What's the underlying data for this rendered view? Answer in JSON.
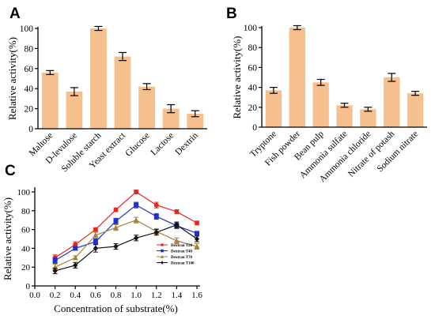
{
  "chart_data": [
    {
      "panel": "A",
      "type": "bar",
      "ylabel": "Relative activity(%)",
      "categories": [
        "Maltose",
        "D-levulose",
        "Soluble starch",
        "Yeast extract",
        "Glucose",
        "Lactose",
        "Dextrin"
      ],
      "values": [
        56,
        37,
        100,
        72,
        42,
        20,
        15
      ],
      "errors": [
        2,
        4,
        2,
        4,
        3,
        4,
        3
      ],
      "ylim": [
        0,
        100
      ],
      "yticks": [
        0,
        20,
        40,
        60,
        80,
        100
      ],
      "bar_color": "#f5c08e"
    },
    {
      "panel": "B",
      "type": "bar",
      "ylabel": "Relative activity(%)",
      "categories": [
        "Tryptone",
        "Fish powder",
        "Bean pulp",
        "Ammonia sulfate",
        "Ammonia chloride",
        "Nitrate of potash",
        "Sodium nitrate"
      ],
      "values": [
        37,
        100,
        45,
        22,
        18,
        50,
        34
      ],
      "errors": [
        3,
        2,
        3,
        2,
        2,
        4,
        2
      ],
      "ylim": [
        0,
        100
      ],
      "yticks": [
        0,
        20,
        40,
        60,
        80,
        100
      ],
      "bar_color": "#f5c08e"
    },
    {
      "panel": "C",
      "type": "line",
      "xlabel": "Concentration of substrate(%)",
      "ylabel": "Relative activity(%)",
      "xlim": [
        0.0,
        1.6
      ],
      "ylim": [
        0,
        100
      ],
      "xticks": [
        0.0,
        0.2,
        0.4,
        0.6,
        0.8,
        1.0,
        1.2,
        1.4,
        1.6
      ],
      "yticks": [
        0,
        20,
        40,
        60,
        80,
        100
      ],
      "x": [
        0.2,
        0.4,
        0.6,
        0.8,
        1.0,
        1.2,
        1.4,
        1.6
      ],
      "legend_position": "bottom-right",
      "series": [
        {
          "name": "Dextran T20",
          "color": "#e8251e",
          "marker": "circle",
          "values": [
            30,
            44,
            60,
            81,
            100,
            86,
            79,
            67
          ],
          "errors": [
            3,
            3,
            2,
            2,
            2,
            3,
            2,
            2
          ]
        },
        {
          "name": "Dextran T40",
          "color": "#1e2fcc",
          "marker": "square",
          "values": [
            27,
            40,
            47,
            69,
            86,
            74,
            64,
            56
          ],
          "errors": [
            3,
            2,
            3,
            3,
            3,
            3,
            3,
            2
          ]
        },
        {
          "name": "Dextran T70",
          "color": "#a8823a",
          "marker": "triangle",
          "values": [
            20,
            30,
            54,
            62,
            70,
            58,
            48,
            42
          ],
          "errors": [
            3,
            2,
            3,
            3,
            3,
            3,
            3,
            3
          ]
        },
        {
          "name": "Dextran T100",
          "color": "#111111",
          "marker": "diamond",
          "values": [
            16,
            22,
            40,
            42,
            51,
            57,
            65,
            50
          ],
          "errors": [
            3,
            3,
            4,
            3,
            3,
            3,
            3,
            3
          ]
        }
      ]
    }
  ],
  "panels": {
    "a": {
      "letter": "A"
    },
    "b": {
      "letter": "B"
    },
    "c": {
      "letter": "C"
    }
  }
}
